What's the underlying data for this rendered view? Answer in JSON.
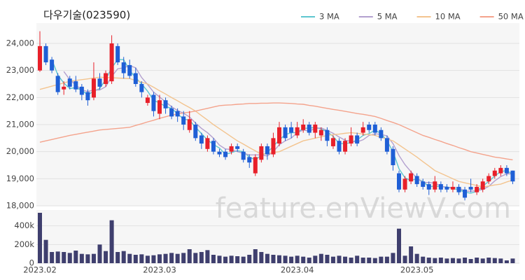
{
  "chart_data": [
    {
      "type": "candlestick",
      "title": "다우기술(023590)",
      "open": [
        23000,
        23900,
        23400,
        22800,
        22300,
        22700,
        22600,
        22400,
        22200,
        22000,
        22700,
        22500,
        22600,
        23900,
        23300,
        23200,
        22900,
        22500,
        21800,
        22100,
        21400,
        21900,
        21600,
        21500,
        21300,
        20800,
        21000,
        20600,
        20100,
        20400,
        20000,
        20000,
        20000,
        20200,
        20000,
        19800,
        19200,
        19700,
        20200,
        19900,
        20300,
        20900,
        20900,
        20600,
        20800,
        21000,
        20700,
        20600,
        20800,
        20200,
        20400,
        20000,
        20300,
        20600,
        20700,
        21000,
        21000,
        20800,
        20500,
        20100,
        19200,
        18600,
        18900,
        19100,
        18900,
        18800,
        18600,
        18800,
        18700,
        18600,
        18700,
        18600,
        18700,
        18500,
        18600,
        18900,
        19100,
        19200,
        19400,
        19300
      ],
      "high": [
        24450,
        24000,
        23500,
        22900,
        22600,
        22800,
        22800,
        22500,
        22300,
        23300,
        22900,
        23000,
        24300,
        24000,
        23500,
        23400,
        23100,
        22600,
        22100,
        22200,
        22100,
        22000,
        21700,
        21600,
        21500,
        21500,
        21100,
        20700,
        20600,
        20500,
        20100,
        20100,
        20300,
        20300,
        20100,
        19900,
        19900,
        20300,
        20300,
        20700,
        21100,
        21000,
        21100,
        21100,
        21200,
        21100,
        21100,
        20900,
        20900,
        20600,
        20500,
        20500,
        20900,
        20700,
        21100,
        21100,
        21100,
        20900,
        20600,
        20200,
        19300,
        19100,
        19300,
        19200,
        19000,
        18900,
        19100,
        18900,
        18800,
        18900,
        18800,
        18700,
        19000,
        18800,
        19000,
        19200,
        19400,
        19500,
        19500,
        19300
      ],
      "low": [
        22950,
        23200,
        22900,
        22100,
        22100,
        22300,
        22200,
        21900,
        21700,
        21900,
        22300,
        22400,
        22500,
        23200,
        22700,
        22700,
        22400,
        22000,
        21700,
        21300,
        21200,
        21400,
        21200,
        21100,
        20800,
        20700,
        20400,
        20100,
        20000,
        19900,
        19800,
        19700,
        19900,
        20000,
        19600,
        19400,
        19100,
        19600,
        19700,
        19800,
        20200,
        20400,
        20500,
        20500,
        20700,
        20600,
        20500,
        20400,
        20200,
        20100,
        19900,
        19900,
        20200,
        20200,
        20600,
        20700,
        20600,
        20400,
        19900,
        19300,
        18500,
        18500,
        18800,
        18700,
        18600,
        18400,
        18500,
        18500,
        18500,
        18500,
        18400,
        18200,
        18500,
        18400,
        18500,
        18800,
        19000,
        19100,
        19100,
        18800
      ],
      "close": [
        23900,
        23300,
        23000,
        22200,
        22400,
        22400,
        22300,
        22100,
        21900,
        22700,
        22400,
        22900,
        24000,
        23300,
        22900,
        22800,
        22500,
        22200,
        22000,
        21500,
        21900,
        21600,
        21300,
        21300,
        21000,
        21200,
        20500,
        20300,
        20500,
        20000,
        19900,
        19800,
        20200,
        20100,
        19700,
        19600,
        19800,
        20200,
        19900,
        20500,
        20900,
        20500,
        20700,
        20900,
        21000,
        20700,
        21000,
        20800,
        20400,
        20500,
        20000,
        20400,
        20600,
        20300,
        20900,
        20800,
        20700,
        20500,
        20000,
        19500,
        18600,
        19000,
        19200,
        18800,
        18700,
        18600,
        18900,
        18600,
        18600,
        18700,
        18500,
        18300,
        18600,
        18700,
        18900,
        19100,
        19300,
        19400,
        19200,
        18900
      ],
      "up_color": "#e8202a",
      "down_color": "#1f5fd6",
      "series": [
        {
          "name": "3 MA",
          "color": "#5ec6cf",
          "values": [
            null,
            null,
            23400,
            22833,
            22533,
            22333,
            22367,
            22267,
            22100,
            22233,
            22333,
            22667,
            23100,
            23400,
            23400,
            23000,
            22733,
            22500,
            22233,
            21900,
            21800,
            21667,
            21600,
            21400,
            21200,
            21167,
            20900,
            20667,
            20433,
            20267,
            20133,
            19900,
            19967,
            20033,
            20000,
            19800,
            19700,
            19867,
            19967,
            20200,
            20433,
            20633,
            20700,
            20700,
            20867,
            20867,
            20900,
            20833,
            20733,
            20567,
            20300,
            20300,
            20333,
            20433,
            20600,
            20667,
            20800,
            20667,
            20400,
            20000,
            19367,
            19033,
            18933,
            19000,
            18900,
            18700,
            18733,
            18700,
            18700,
            18633,
            18600,
            18500,
            18467,
            18533,
            18733,
            18900,
            19100,
            19267,
            19300,
            19167
          ]
        },
        {
          "name": "5 MA",
          "color": "#b3a0cf",
          "values": [
            null,
            null,
            null,
            null,
            22960,
            22660,
            22460,
            22280,
            22220,
            22280,
            22280,
            22400,
            22780,
            23060,
            23100,
            23180,
            23100,
            22740,
            22480,
            22200,
            22020,
            21840,
            21660,
            21520,
            21420,
            21280,
            21060,
            20860,
            20700,
            20500,
            20240,
            20100,
            20080,
            20000,
            19940,
            19880,
            19880,
            19880,
            19840,
            20000,
            20260,
            20400,
            20500,
            20700,
            20800,
            20760,
            20860,
            20880,
            20780,
            20680,
            20540,
            20420,
            20380,
            20360,
            20440,
            20600,
            20660,
            20640,
            20580,
            20300,
            19860,
            19520,
            19260,
            19020,
            18860,
            18860,
            18840,
            18720,
            18680,
            18680,
            18660,
            18540,
            18540,
            18560,
            18600,
            18720,
            18920,
            19080,
            19180,
            19180
          ]
        },
        {
          "name": "10 MA",
          "color": "#f3c48f",
          "values": [
            22300,
            22360,
            22420,
            22480,
            22540,
            22600,
            22630,
            22660,
            22690,
            22720,
            22750,
            22740,
            22730,
            22720,
            22710,
            22700,
            22630,
            22570,
            22500,
            22380,
            22250,
            22130,
            22000,
            21880,
            21750,
            21630,
            21500,
            21330,
            21170,
            21000,
            20850,
            20700,
            20550,
            20400,
            20280,
            20150,
            20030,
            19900,
            19930,
            19970,
            20000,
            20100,
            20200,
            20300,
            20400,
            20450,
            20500,
            20550,
            20600,
            20630,
            20650,
            20680,
            20700,
            20680,
            20650,
            20630,
            20600,
            20530,
            20470,
            20400,
            20250,
            20100,
            19950,
            19800,
            19630,
            19470,
            19300,
            19200,
            19100,
            19000,
            18900,
            18850,
            18800,
            18750,
            18700,
            18730,
            18770,
            18800,
            18880,
            18950
          ]
        },
        {
          "name": "50 MA",
          "color": "#f4a38c",
          "values": [
            20350,
            20400,
            20450,
            20500,
            20550,
            20600,
            20640,
            20680,
            20720,
            20760,
            20800,
            20820,
            20840,
            20860,
            20880,
            20900,
            20970,
            21030,
            21100,
            21160,
            21230,
            21290,
            21350,
            21390,
            21430,
            21460,
            21500,
            21550,
            21600,
            21650,
            21700,
            21720,
            21730,
            21750,
            21760,
            21780,
            21780,
            21790,
            21790,
            21800,
            21800,
            21790,
            21780,
            21760,
            21750,
            21710,
            21680,
            21640,
            21600,
            21560,
            21530,
            21490,
            21450,
            21410,
            21380,
            21340,
            21300,
            21230,
            21150,
            21080,
            21000,
            20900,
            20800,
            20700,
            20600,
            20530,
            20450,
            20380,
            20300,
            20230,
            20150,
            20080,
            20000,
            19950,
            19900,
            19850,
            19800,
            19770,
            19730,
            19700
          ]
        }
      ],
      "ylim": [
        18000,
        24750
      ],
      "yticks": [
        {
          "value": 18000,
          "label": "18,000"
        },
        {
          "value": 19000,
          "label": "19,000"
        },
        {
          "value": 20000,
          "label": "20,000"
        },
        {
          "value": 21000,
          "label": "21,000"
        },
        {
          "value": 22000,
          "label": "22,000"
        },
        {
          "value": 23000,
          "label": "23,000"
        },
        {
          "value": 24000,
          "label": "24,000"
        }
      ],
      "grid": true,
      "legend": "top-right",
      "watermark": "feature.enViewV.com"
    },
    {
      "type": "bar",
      "color": "#3f3f6e",
      "categories": [
        "2023.02",
        null,
        null,
        null,
        null,
        null,
        null,
        null,
        null,
        null,
        null,
        null,
        null,
        null,
        null,
        null,
        null,
        null,
        null,
        null,
        "2023.03",
        null,
        null,
        null,
        null,
        null,
        null,
        null,
        null,
        null,
        null,
        null,
        null,
        null,
        null,
        null,
        null,
        null,
        null,
        null,
        null,
        null,
        null,
        "2023.04",
        null,
        null,
        null,
        null,
        null,
        null,
        null,
        null,
        null,
        null,
        null,
        null,
        null,
        null,
        null,
        null,
        null,
        null,
        null,
        "2023.05",
        null,
        null,
        null,
        null,
        null,
        null,
        null,
        null,
        null,
        null,
        null,
        null,
        null,
        null,
        null,
        null
      ],
      "values": [
        540000,
        250000,
        120000,
        125000,
        120000,
        110000,
        135000,
        100000,
        95000,
        100000,
        200000,
        130000,
        460000,
        120000,
        130000,
        100000,
        90000,
        95000,
        80000,
        85000,
        95000,
        100000,
        110000,
        100000,
        110000,
        150000,
        110000,
        120000,
        140000,
        90000,
        80000,
        70000,
        80000,
        75000,
        70000,
        90000,
        150000,
        120000,
        100000,
        90000,
        85000,
        80000,
        70000,
        80000,
        70000,
        60000,
        80000,
        100000,
        90000,
        70000,
        80000,
        70000,
        60000,
        80000,
        60000,
        60000,
        55000,
        70000,
        70000,
        110000,
        370000,
        80000,
        180000,
        100000,
        70000,
        60000,
        55000,
        60000,
        50000,
        55000,
        50000,
        60000,
        45000,
        60000,
        50000,
        60000,
        55000,
        50000,
        30000,
        50000
      ],
      "ylim": [
        0,
        570000
      ],
      "yticks": [
        0,
        {
          "value": 200000,
          "label": "200k"
        },
        {
          "value": 400000,
          "label": "400k"
        }
      ],
      "grid": true
    }
  ]
}
